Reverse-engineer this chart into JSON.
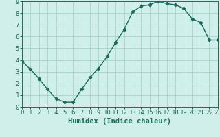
{
  "x": [
    0,
    1,
    2,
    3,
    4,
    5,
    6,
    7,
    8,
    9,
    10,
    11,
    12,
    13,
    14,
    15,
    16,
    17,
    18,
    19,
    20,
    21,
    22,
    23
  ],
  "y": [
    3.9,
    3.2,
    2.4,
    1.5,
    0.7,
    0.4,
    0.4,
    1.5,
    2.5,
    3.3,
    4.3,
    5.5,
    6.6,
    8.1,
    8.6,
    8.7,
    9.0,
    8.8,
    8.7,
    8.4,
    7.5,
    7.2,
    5.7,
    5.7
  ],
  "xlabel": "Humidex (Indice chaleur)",
  "ylim": [
    0,
    9
  ],
  "xlim": [
    0,
    23
  ],
  "line_color": "#1a6b5a",
  "bg_color": "#d0eeea",
  "grid_color": "#a8d8d0",
  "xlabel_fontsize": 7.5,
  "tick_fontsize": 6.5
}
